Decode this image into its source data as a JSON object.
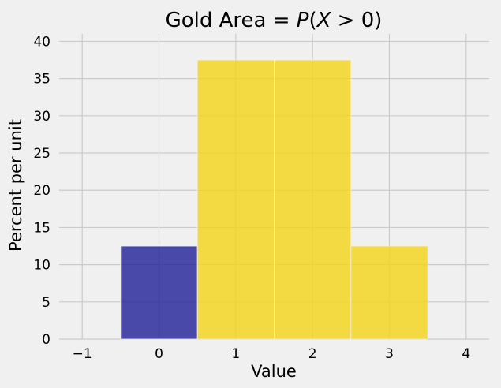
{
  "chart_data": {
    "type": "bar",
    "title_parts": [
      {
        "text": "Gold Area = ",
        "italic": false
      },
      {
        "text": "P",
        "italic": true
      },
      {
        "text": "(",
        "italic": false
      },
      {
        "text": "X",
        "italic": true
      },
      {
        "text": " > 0)",
        "italic": false
      }
    ],
    "xlabel": "Value",
    "ylabel": "Percent per unit",
    "xlim": [
      -1.3,
      4.3
    ],
    "ylim": [
      0,
      41
    ],
    "xticks": [
      -1,
      0,
      1,
      2,
      3,
      4
    ],
    "xtick_labels": [
      "−1",
      "0",
      "1",
      "2",
      "3",
      "4"
    ],
    "yticks": [
      0,
      5,
      10,
      15,
      20,
      25,
      30,
      35,
      40
    ],
    "ytick_labels": [
      "0",
      "5",
      "10",
      "15",
      "20",
      "25",
      "30",
      "35",
      "40"
    ],
    "grid": true,
    "bins": [
      {
        "left": -0.5,
        "right": 0.5,
        "value": 12.5,
        "color": "#1f1f99"
      },
      {
        "left": 0.5,
        "right": 1.5,
        "value": 37.5,
        "color": "#f5d417"
      },
      {
        "left": 1.5,
        "right": 2.5,
        "value": 37.5,
        "color": "#f5d417"
      },
      {
        "left": 2.5,
        "right": 3.5,
        "value": 12.5,
        "color": "#f5d417"
      }
    ],
    "colors": {
      "shaded": "#f5d417",
      "unshaded": "#1f1f99",
      "background": "#f0f0f0"
    }
  }
}
